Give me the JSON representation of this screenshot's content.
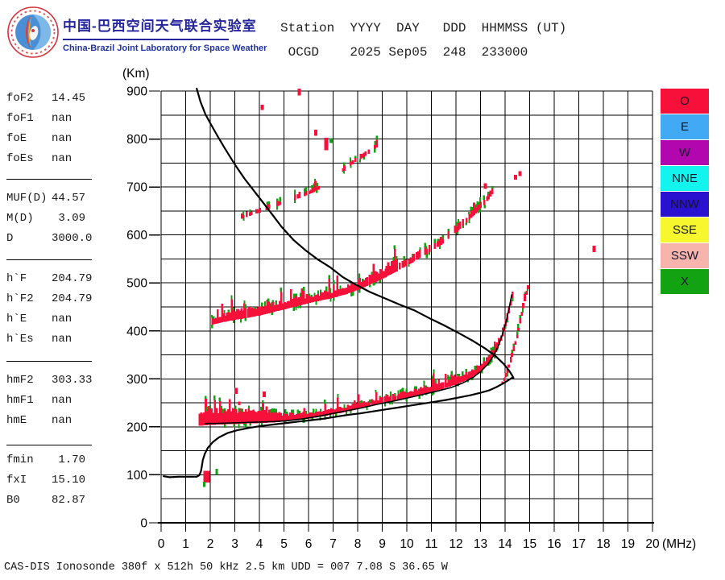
{
  "header": {
    "title_zh": "中国-巴西空间天气联合实验室",
    "subtitle_en": "China-Brazil Joint Laboratory for Space Weather",
    "station_line1": "Station  YYYY  DAY   DDD  HHMMSS (UT)",
    "station_line2": " OCGD    2025 Sep05  248  233000"
  },
  "param_panel": {
    "groups": [
      {
        "rows": [
          [
            "foF2",
            "14.45"
          ],
          [
            "foF1",
            "nan"
          ],
          [
            "foE",
            "nan"
          ],
          [
            "foEs",
            "nan"
          ]
        ]
      },
      {
        "rows": [
          [
            "MUF(D)",
            "44.57"
          ],
          [
            "M(D)",
            " 3.09"
          ],
          [
            "D",
            "3000.0"
          ]
        ]
      },
      {
        "rows": [
          [
            "h`F",
            "204.79"
          ],
          [
            "h`F2",
            "204.79"
          ],
          [
            "h`E",
            "nan"
          ],
          [
            "h`Es",
            "nan"
          ]
        ]
      },
      {
        "rows": [
          [
            "hmF2",
            "303.33"
          ],
          [
            "hmF1",
            "nan"
          ],
          [
            "hmE",
            "nan"
          ]
        ]
      },
      {
        "rows": [
          [
            "fmin",
            " 1.70"
          ],
          [
            "fxI",
            "15.10"
          ],
          [
            "B0",
            "82.87"
          ]
        ]
      }
    ]
  },
  "legend": {
    "items": [
      {
        "label": "O",
        "color": "#f7103a"
      },
      {
        "label": "E",
        "color": "#42aaf5"
      },
      {
        "label": "W",
        "color": "#b207ae"
      },
      {
        "label": "NNE",
        "color": "#13f4ee"
      },
      {
        "label": "NNW",
        "color": "#2a10cf"
      },
      {
        "label": "SSE",
        "color": "#f7f72e"
      },
      {
        "label": "SSW",
        "color": "#f6b4ac"
      },
      {
        "label": "X",
        "color": "#12a212"
      }
    ]
  },
  "status_line": "CAS-DIS Ionosonde 380f x 512h 50 kHz 2.5 km UDD = 007 7.08 S 36.65 W",
  "chart_data": {
    "type": "scatter",
    "title": "Ionogram OCGD 2025 Sep05 248 233000 UT",
    "xlabel": "(MHz)",
    "ylabel": "(Km)",
    "xlim": [
      0,
      20
    ],
    "ylim": [
      0,
      900
    ],
    "x_ticks": [
      0,
      1,
      2,
      3,
      4,
      5,
      6,
      7,
      8,
      9,
      10,
      11,
      12,
      13,
      14,
      15,
      16,
      17,
      18,
      19,
      20
    ],
    "y_ticks": [
      0,
      100,
      200,
      300,
      400,
      500,
      600,
      700,
      800,
      900
    ],
    "grid": {
      "x_step_mhz": 1,
      "y_step_km": 50,
      "on": true
    },
    "legend_position": "right",
    "colors": {
      "o_mode": "#f7103a",
      "x_mode": "#12a212",
      "curve": "#000000"
    },
    "curves": [
      {
        "name": "transmission-curve",
        "points": [
          [
            1.45,
            905
          ],
          [
            1.6,
            878
          ],
          [
            1.8,
            852
          ],
          [
            2.0,
            833
          ],
          [
            2.3,
            806
          ],
          [
            2.6,
            780
          ],
          [
            3.0,
            747
          ],
          [
            3.4,
            717
          ],
          [
            3.9,
            684
          ],
          [
            4.4,
            651
          ],
          [
            4.9,
            617
          ],
          [
            5.4,
            589
          ],
          [
            5.9,
            567
          ],
          [
            6.4,
            548
          ],
          [
            6.9,
            532
          ],
          [
            7.4,
            512
          ],
          [
            7.9,
            497
          ],
          [
            8.5,
            481
          ],
          [
            9.1,
            468
          ],
          [
            9.7,
            455
          ],
          [
            10.3,
            443
          ],
          [
            10.9,
            427
          ],
          [
            11.5,
            412
          ],
          [
            12.1,
            396
          ],
          [
            12.7,
            379
          ],
          [
            13.2,
            363
          ],
          [
            13.6,
            348
          ],
          [
            13.95,
            331
          ],
          [
            14.18,
            316
          ],
          [
            14.3,
            306
          ],
          [
            14.34,
            301
          ]
        ]
      },
      {
        "name": "true-height-profile",
        "points": [
          [
            0.1,
            97
          ],
          [
            0.35,
            95
          ],
          [
            0.7,
            96
          ],
          [
            1.1,
            96
          ],
          [
            1.45,
            96
          ],
          [
            1.55,
            99
          ],
          [
            1.62,
            107
          ],
          [
            1.66,
            118
          ],
          [
            1.7,
            131
          ],
          [
            1.78,
            144
          ],
          [
            1.9,
            156
          ],
          [
            2.1,
            168
          ],
          [
            2.35,
            178
          ],
          [
            2.7,
            187
          ],
          [
            3.1,
            193
          ],
          [
            3.6,
            198
          ],
          [
            4.1,
            202
          ],
          [
            4.6,
            205
          ],
          [
            5.1,
            208
          ],
          [
            5.6,
            211
          ],
          [
            6.1,
            214
          ],
          [
            6.6,
            217
          ],
          [
            7.1,
            221
          ],
          [
            7.6,
            225
          ],
          [
            8.1,
            228
          ],
          [
            8.6,
            232
          ],
          [
            9.1,
            236
          ],
          [
            9.6,
            240
          ],
          [
            10.1,
            244
          ],
          [
            10.6,
            248
          ],
          [
            11.1,
            252
          ],
          [
            11.6,
            256
          ],
          [
            12.1,
            261
          ],
          [
            12.6,
            266
          ],
          [
            13.0,
            271
          ],
          [
            13.35,
            276
          ],
          [
            13.65,
            283
          ],
          [
            13.9,
            290
          ],
          [
            14.1,
            296
          ],
          [
            14.25,
            301
          ],
          [
            14.33,
            303
          ]
        ]
      },
      {
        "name": "fitted-o-trace",
        "points": [
          [
            1.8,
            207
          ],
          [
            2.2,
            207
          ],
          [
            2.8,
            208
          ],
          [
            3.4,
            209
          ],
          [
            4.0,
            210
          ],
          [
            4.6,
            211
          ],
          [
            5.2,
            213
          ],
          [
            5.8,
            217
          ],
          [
            6.4,
            222
          ],
          [
            7.0,
            228
          ],
          [
            7.6,
            234
          ],
          [
            8.2,
            240
          ],
          [
            8.8,
            247
          ],
          [
            9.4,
            253
          ],
          [
            10.0,
            260
          ],
          [
            10.6,
            267
          ],
          [
            11.2,
            274
          ],
          [
            11.8,
            282
          ],
          [
            12.3,
            292
          ],
          [
            12.7,
            303
          ],
          [
            13.0,
            315
          ],
          [
            13.3,
            331
          ],
          [
            13.55,
            350
          ],
          [
            13.75,
            372
          ],
          [
            13.92,
            397
          ],
          [
            14.05,
            421
          ],
          [
            14.15,
            444
          ],
          [
            14.22,
            462
          ],
          [
            14.27,
            475
          ]
        ]
      }
    ],
    "echo_bands": [
      {
        "name": "f-trace-1st-hop-o",
        "mode": "o",
        "density": 1,
        "green_prob": 0.3,
        "spike_prob": 0.14,
        "spike_km": 24,
        "points": [
          [
            1.55,
            202
          ],
          [
            1.8,
            203
          ],
          [
            2.0,
            204
          ],
          [
            2.5,
            205
          ],
          [
            3.0,
            206
          ],
          [
            3.5,
            207
          ],
          [
            4.0,
            208
          ],
          [
            4.5,
            209
          ],
          [
            5.0,
            211
          ],
          [
            5.5,
            214
          ],
          [
            6.0,
            217
          ],
          [
            6.5,
            221
          ],
          [
            7.0,
            226
          ],
          [
            7.5,
            231
          ],
          [
            8.0,
            237
          ],
          [
            8.5,
            243
          ],
          [
            9.0,
            249
          ],
          [
            9.5,
            255
          ],
          [
            10.0,
            261
          ],
          [
            10.5,
            267
          ],
          [
            11.0,
            273
          ],
          [
            11.5,
            280
          ],
          [
            12.0,
            288
          ],
          [
            12.4,
            297
          ],
          [
            12.8,
            308
          ],
          [
            13.1,
            320
          ],
          [
            13.4,
            337
          ],
          [
            13.65,
            357
          ],
          [
            13.85,
            381
          ],
          [
            14.0,
            404
          ],
          [
            14.12,
            427
          ],
          [
            14.21,
            449
          ],
          [
            14.28,
            466
          ],
          [
            14.33,
            480
          ]
        ],
        "thickness": [
          [
            1.55,
            28
          ],
          [
            2.5,
            27
          ],
          [
            3.5,
            25
          ],
          [
            4.5,
            21
          ],
          [
            5.0,
            15
          ],
          [
            6.0,
            12
          ],
          [
            8.0,
            11
          ],
          [
            10.0,
            12
          ],
          [
            12.0,
            13
          ],
          [
            13.0,
            15
          ],
          [
            13.6,
            16
          ],
          [
            14.0,
            15
          ],
          [
            14.33,
            12
          ]
        ]
      },
      {
        "name": "f-trace-1st-hop-x",
        "mode": "o",
        "density": 0.92,
        "green_prob": 0.5,
        "spike_prob": 0.1,
        "spike_km": 8,
        "points": [
          [
            13.9,
            288
          ],
          [
            14.05,
            305
          ],
          [
            14.2,
            330
          ],
          [
            14.35,
            357
          ],
          [
            14.5,
            388
          ],
          [
            14.62,
            417
          ],
          [
            14.73,
            444
          ],
          [
            14.83,
            466
          ],
          [
            14.92,
            484
          ],
          [
            15.0,
            497
          ]
        ],
        "thickness": 9
      },
      {
        "name": "f-trace-2nd-hop",
        "mode": "o",
        "density": 1,
        "green_prob": 0.3,
        "spike_prob": 0.2,
        "spike_km": 30,
        "points": [
          [
            2.1,
            413
          ],
          [
            2.5,
            418
          ],
          [
            3.0,
            423
          ],
          [
            3.5,
            427
          ],
          [
            4.0,
            432
          ],
          [
            4.5,
            438
          ],
          [
            5.0,
            445
          ],
          [
            5.5,
            451
          ],
          [
            6.0,
            458
          ],
          [
            6.5,
            463
          ],
          [
            7.0,
            469
          ],
          [
            7.5,
            476
          ],
          [
            8.0,
            485
          ],
          [
            8.5,
            496
          ],
          [
            9.0,
            508
          ],
          [
            9.6,
            525
          ]
        ],
        "thickness": [
          [
            2.1,
            14
          ],
          [
            3.0,
            18
          ],
          [
            5.0,
            16
          ],
          [
            7.0,
            15
          ],
          [
            8.5,
            18
          ],
          [
            9.6,
            20
          ]
        ]
      },
      {
        "name": "f-trace-2nd-hop-upper",
        "mode": "o",
        "density": 0.8,
        "green_prob": 0.45,
        "spike_prob": 0.15,
        "spike_km": 18,
        "points": [
          [
            9.7,
            528
          ],
          [
            10.0,
            536
          ],
          [
            10.4,
            548
          ],
          [
            10.8,
            560
          ],
          [
            11.2,
            573
          ],
          [
            11.6,
            587
          ],
          [
            11.9,
            600
          ],
          [
            12.2,
            614
          ],
          [
            12.5,
            629
          ],
          [
            12.8,
            644
          ],
          [
            13.1,
            660
          ],
          [
            13.35,
            675
          ],
          [
            13.5,
            688
          ]
        ],
        "thickness": 13
      },
      {
        "name": "f-trace-3rd-hop-a",
        "mode": "o",
        "density": 0.5,
        "green_prob": 0.35,
        "spike_prob": 0.12,
        "spike_km": 14,
        "points": [
          [
            3.3,
            634
          ],
          [
            3.8,
            643
          ],
          [
            4.3,
            652
          ],
          [
            4.8,
            661
          ],
          [
            5.3,
            670
          ],
          [
            5.8,
            680
          ],
          [
            6.3,
            691
          ],
          [
            6.6,
            699
          ]
        ],
        "thickness": 9
      },
      {
        "name": "f-trace-3rd-hop-b",
        "mode": "o",
        "density": 0.55,
        "green_prob": 0.4,
        "spike_prob": 0.1,
        "spike_km": 12,
        "points": [
          [
            7.4,
            731
          ],
          [
            7.8,
            748
          ],
          [
            8.2,
            761
          ],
          [
            8.5,
            771
          ],
          [
            8.8,
            784
          ],
          [
            8.95,
            791
          ]
        ],
        "thickness": 9
      }
    ],
    "echo_specks": [
      [
        5.62,
        898,
        "o",
        4,
        14
      ],
      [
        4.12,
        866,
        "o",
        4,
        11
      ],
      [
        6.3,
        813,
        "o",
        4,
        12
      ],
      [
        6.72,
        790,
        "o",
        5,
        26
      ],
      [
        6.92,
        797,
        "x",
        4,
        10
      ],
      [
        13.2,
        702,
        "o",
        4,
        12
      ],
      [
        14.42,
        720,
        "o",
        4,
        10
      ],
      [
        14.6,
        728,
        "o",
        4,
        10
      ],
      [
        17.62,
        571,
        "o",
        4,
        13
      ],
      [
        3.05,
        275,
        "o",
        4,
        13
      ],
      [
        3.18,
        249,
        "o",
        3,
        8
      ],
      [
        4.2,
        268,
        "o",
        4,
        12
      ],
      [
        1.85,
        96,
        "o",
        8,
        24
      ],
      [
        1.76,
        80,
        "x",
        3,
        11
      ],
      [
        2.26,
        106,
        "x",
        3,
        13
      ]
    ]
  }
}
